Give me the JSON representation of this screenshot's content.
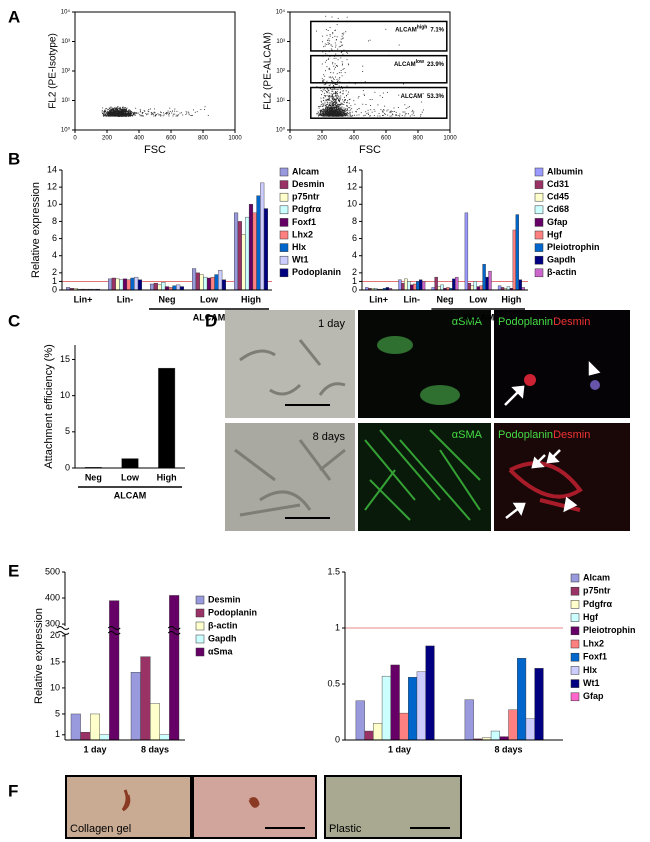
{
  "figure": {
    "panel_labels": [
      "A",
      "B",
      "C",
      "D",
      "E",
      "F"
    ],
    "D": {
      "rows": [
        "1 day",
        "8 days"
      ],
      "stain_sma": "αSMA",
      "stain_podoplanin": "Podoplanin",
      "stain_desmin": "Desmin"
    },
    "F": {
      "captions": [
        "Collagen gel",
        "Plastic"
      ]
    }
  },
  "chart_data": [
    {
      "type": "scatter",
      "xlabel": "FSC",
      "ylabel": "FL2 (PE-Isotype)",
      "xlim": [
        0,
        1000
      ],
      "ylim": [
        1,
        10000
      ],
      "log_y": true,
      "xticks": [
        0,
        200,
        400,
        600,
        800,
        1000
      ],
      "yticks": [
        {
          "value": 1,
          "label": "10⁰"
        },
        {
          "value": 10,
          "label": "10¹"
        },
        {
          "value": 100,
          "label": "10²"
        },
        {
          "value": 1000,
          "label": "10³"
        },
        {
          "value": 10000,
          "label": "10⁴"
        }
      ]
    },
    {
      "type": "scatter",
      "xlabel": "FSC",
      "ylabel": "FL2 (PE-ALCAM)",
      "xlim": [
        0,
        1000
      ],
      "ylim": [
        1,
        10000
      ],
      "log_y": true,
      "xticks": [
        0,
        200,
        400,
        600,
        800,
        1000
      ],
      "yticks": [
        {
          "value": 1,
          "label": "10⁰"
        },
        {
          "value": 10,
          "label": "10¹"
        },
        {
          "value": 100,
          "label": "10²"
        },
        {
          "value": 1000,
          "label": "10³"
        },
        {
          "value": 10000,
          "label": "10⁴"
        }
      ],
      "gates": [
        {
          "name": "ALCAM",
          "sup": "high",
          "label": "7.1%"
        },
        {
          "name": "ALCAM",
          "sup": "low",
          "label": "23.9%"
        },
        {
          "name": "ALCAM",
          "sup": "-",
          "label": "53.3%"
        }
      ]
    },
    {
      "type": "bar",
      "ylabel": "Relative expression",
      "categories": [
        "Lin+",
        "Lin-",
        "Neg",
        "Low",
        "High"
      ],
      "category_groups": [
        {
          "label": "ALCAM",
          "start": 2,
          "end": 4
        }
      ],
      "ylim": [
        0,
        14
      ],
      "yticks": [
        0,
        1,
        2,
        4,
        6,
        8,
        10,
        12,
        14
      ],
      "reference_line": 1,
      "series": [
        {
          "name": "Alcam",
          "color": "#9999dd",
          "values": [
            0.3,
            1.3,
            0.7,
            2.5,
            9
          ]
        },
        {
          "name": "Desmin",
          "color": "#993366",
          "values": [
            0.2,
            1.4,
            0.8,
            2.0,
            8
          ]
        },
        {
          "name": "p75ntr",
          "color": "#ffffcc",
          "values": [
            0.2,
            1.3,
            0.6,
            1.8,
            6.5
          ]
        },
        {
          "name": "Pdgfrα",
          "color": "#ccffff",
          "values": [
            0.1,
            1.2,
            0.9,
            1.5,
            8.5
          ]
        },
        {
          "name": "Foxf1",
          "color": "#660066",
          "values": [
            0.1,
            1.3,
            0.4,
            1.4,
            10
          ]
        },
        {
          "name": "Lhx2",
          "color": "#ff8080",
          "values": [
            0.1,
            1.2,
            0.3,
            1.5,
            9
          ]
        },
        {
          "name": "Hlx",
          "color": "#0066cc",
          "values": [
            0.1,
            1.4,
            0.5,
            1.8,
            11
          ]
        },
        {
          "name": "Wt1",
          "color": "#ccccff",
          "values": [
            0.1,
            1.5,
            0.6,
            2.3,
            12.5
          ]
        },
        {
          "name": "Podoplanin",
          "color": "#000080",
          "values": [
            0.1,
            1.2,
            0.4,
            1.2,
            9.5
          ]
        }
      ]
    },
    {
      "type": "bar",
      "categories": [
        "Lin+",
        "Lin-",
        "Neg",
        "Low",
        "High"
      ],
      "category_groups": [
        {
          "label": "ALCAM",
          "start": 2,
          "end": 4
        }
      ],
      "ylim": [
        0,
        14
      ],
      "yticks": [
        0,
        1,
        2,
        4,
        6,
        8,
        10,
        12,
        14
      ],
      "reference_line": 1,
      "series": [
        {
          "name": "Albumin",
          "color": "#9999ff",
          "values": [
            0.3,
            1.2,
            0.3,
            9,
            0.5
          ]
        },
        {
          "name": "Cd31",
          "color": "#993366",
          "values": [
            0.2,
            0.8,
            1.5,
            0.8,
            0.3
          ]
        },
        {
          "name": "Cd45",
          "color": "#ffffcc",
          "values": [
            0.2,
            1.3,
            0.4,
            0.5,
            0.2
          ]
        },
        {
          "name": "Cd68",
          "color": "#ccffff",
          "values": [
            0.2,
            1.0,
            0.6,
            1.0,
            0.4
          ]
        },
        {
          "name": "Gfap",
          "color": "#660066",
          "values": [
            0.1,
            0.6,
            0.2,
            0.4,
            0.2
          ]
        },
        {
          "name": "Hgf",
          "color": "#ff8080",
          "values": [
            0.1,
            0.7,
            0.3,
            0.5,
            7
          ]
        },
        {
          "name": "Pleiotrophin",
          "color": "#0066cc",
          "values": [
            0.2,
            1.0,
            0.2,
            3.0,
            8.8
          ]
        },
        {
          "name": "Gapdh",
          "color": "#000080",
          "values": [
            0.3,
            1.2,
            1.3,
            1.5,
            1.2
          ]
        },
        {
          "name": "β-actin",
          "color": "#cc66cc",
          "values": [
            0.2,
            1.0,
            1.5,
            2.2,
            0.3
          ]
        }
      ]
    },
    {
      "type": "bar",
      "ylabel": "Attachment efficiency (%)",
      "categories": [
        "Neg",
        "Low",
        "High"
      ],
      "category_groups": [
        {
          "label": "ALCAM",
          "start": 0,
          "end": 2
        }
      ],
      "values": [
        0.1,
        1.3,
        13.8
      ],
      "color": "#000000",
      "ylim": [
        0,
        17
      ],
      "yticks": [
        0,
        5,
        10,
        15
      ]
    },
    {
      "type": "bar",
      "ylabel": "Relative expression",
      "categories": [
        "1 day",
        "8 days"
      ],
      "ylim": [
        0,
        500
      ],
      "y_break": [
        20,
        300
      ],
      "yticks": [
        1,
        5,
        10,
        15,
        20,
        300,
        400,
        500
      ],
      "series": [
        {
          "name": "Desmin",
          "color": "#9999dd",
          "values": [
            5,
            13
          ]
        },
        {
          "name": "Podoplanin",
          "color": "#993366",
          "values": [
            1.5,
            16
          ]
        },
        {
          "name": "β-actin",
          "color": "#ffffcc",
          "values": [
            5,
            7
          ]
        },
        {
          "name": "Gapdh",
          "color": "#ccffff",
          "values": [
            1,
            1
          ]
        },
        {
          "name": "αSma",
          "color": "#660066",
          "values": [
            390,
            410
          ]
        }
      ]
    },
    {
      "type": "bar",
      "categories": [
        "1 day",
        "8 days"
      ],
      "ylim": [
        0,
        1.5
      ],
      "yticks": [
        0,
        0.5,
        1,
        1.5
      ],
      "reference_line": 1,
      "series": [
        {
          "name": "Alcam",
          "color": "#9999dd",
          "values": [
            0.35,
            0.36
          ]
        },
        {
          "name": "p75ntr",
          "color": "#993366",
          "values": [
            0.08,
            0.01
          ]
        },
        {
          "name": "Pdgfrα",
          "color": "#ffffcc",
          "values": [
            0.15,
            0.02
          ]
        },
        {
          "name": "Hgf",
          "color": "#ccffff",
          "values": [
            0.57,
            0.08
          ]
        },
        {
          "name": "Pleiotrophin",
          "color": "#660066",
          "values": [
            0.67,
            0.03
          ]
        },
        {
          "name": "Lhx2",
          "color": "#ff8080",
          "values": [
            0.24,
            0.27
          ]
        },
        {
          "name": "Foxf1",
          "color": "#0066cc",
          "values": [
            0.56,
            0.73
          ]
        },
        {
          "name": "Hlx",
          "color": "#ccccff",
          "values": [
            0.61,
            0.19
          ]
        },
        {
          "name": "Wt1",
          "color": "#000080",
          "values": [
            0.84,
            0.64
          ]
        },
        {
          "name": "Gfap",
          "color": "#ff66cc",
          "values": [
            0,
            0
          ]
        }
      ]
    }
  ]
}
